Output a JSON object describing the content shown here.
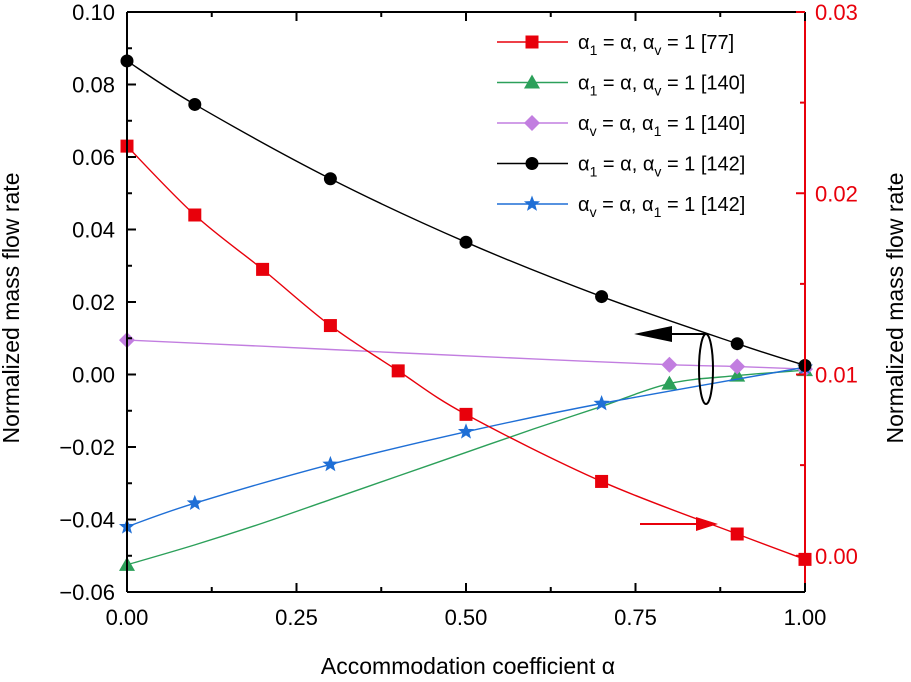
{
  "chart_data": {
    "type": "line",
    "xlabel": "Accommodation coefficient α",
    "ylabel_left": "Normalized mass flow rate",
    "ylabel_right": "Normalized mass flow rate",
    "xlim": [
      0,
      1
    ],
    "ylim_left": [
      -0.06,
      0.1
    ],
    "ylim_right": [
      -0.002,
      0.03
    ],
    "x_ticks": [
      0,
      0.25,
      0.5,
      0.75,
      1.0
    ],
    "x_tick_labels": [
      "0.00",
      "0.25",
      "0.50",
      "0.75",
      "1.00"
    ],
    "y_left_ticks": [
      -0.06,
      -0.04,
      -0.02,
      0.0,
      0.02,
      0.04,
      0.06,
      0.08,
      0.1
    ],
    "y_left_tick_labels": [
      "−0.06",
      "−0.04",
      "−0.02",
      "0.00",
      "0.02",
      "0.04",
      "0.06",
      "0.08",
      "0.10"
    ],
    "y_right_ticks": [
      0.0,
      0.01,
      0.02,
      0.03
    ],
    "y_right_tick_labels": [
      "0.00",
      "0.01",
      "0.02",
      "0.03"
    ],
    "right_axis_color": "#e8000b",
    "legend_position": "top-right",
    "series": [
      {
        "name": "s77",
        "label_parts": [
          "α",
          "1",
          " = α, α",
          "v",
          " = 1 [77]"
        ],
        "color": "#e8000b",
        "marker": "square",
        "axis": "right",
        "x": [
          0,
          0.1,
          0.2,
          0.3,
          0.4,
          0.5,
          0.7,
          0.9,
          1.0
        ],
        "y": [
          0.0226,
          0.0188,
          0.0158,
          0.0127,
          0.0102,
          0.0078,
          0.0041,
          0.0012,
          -0.0002
        ]
      },
      {
        "name": "s140a",
        "label_parts": [
          "α",
          "1",
          " = α, α",
          "v",
          " = 1 [140]"
        ],
        "color": "#2ca05a",
        "marker": "triangle",
        "axis": "left",
        "x": [
          0,
          0.8,
          0.9,
          1.0
        ],
        "y": [
          -0.0525,
          -0.0025,
          -0.0003,
          0.0012
        ],
        "curve_x": [
          0,
          0.1,
          0.2,
          0.3,
          0.4,
          0.5,
          0.6,
          0.7,
          0.8,
          0.9,
          1.0
        ],
        "curve_y": [
          -0.0525,
          -0.047,
          -0.041,
          -0.0345,
          -0.028,
          -0.0215,
          -0.015,
          -0.0088,
          -0.0025,
          -0.0003,
          0.0012
        ]
      },
      {
        "name": "s140b",
        "label_parts": [
          "α",
          "v",
          " = α, α",
          "1",
          " = 1 [140]"
        ],
        "color": "#c27ee0",
        "marker": "diamond",
        "axis": "left",
        "x": [
          0,
          0.8,
          0.9,
          1.0
        ],
        "y": [
          0.0095,
          0.0027,
          0.0022,
          0.0015
        ],
        "curve_x": [
          0,
          0.2,
          0.4,
          0.6,
          0.8,
          0.9,
          1.0
        ],
        "curve_y": [
          0.0095,
          0.0078,
          0.006,
          0.0043,
          0.0027,
          0.0022,
          0.0015
        ]
      },
      {
        "name": "s142a",
        "label_parts": [
          "α",
          "1",
          " = α, α",
          "v",
          " = 1 [142]"
        ],
        "color": "#000000",
        "marker": "circle",
        "axis": "left",
        "x": [
          0,
          0.1,
          0.3,
          0.5,
          0.7,
          0.9,
          1.0
        ],
        "y": [
          0.0865,
          0.0745,
          0.054,
          0.0365,
          0.0215,
          0.0085,
          0.0025
        ]
      },
      {
        "name": "s142b",
        "label_parts": [
          "α",
          "v",
          " = α, α",
          "1",
          " = 1 [142]"
        ],
        "color": "#1f6fd6",
        "marker": "star",
        "axis": "left",
        "x": [
          0,
          0.1,
          0.3,
          0.5,
          0.7,
          1.0
        ],
        "y": [
          -0.042,
          -0.0355,
          -0.0248,
          -0.0158,
          -0.008,
          0.002
        ]
      }
    ]
  }
}
